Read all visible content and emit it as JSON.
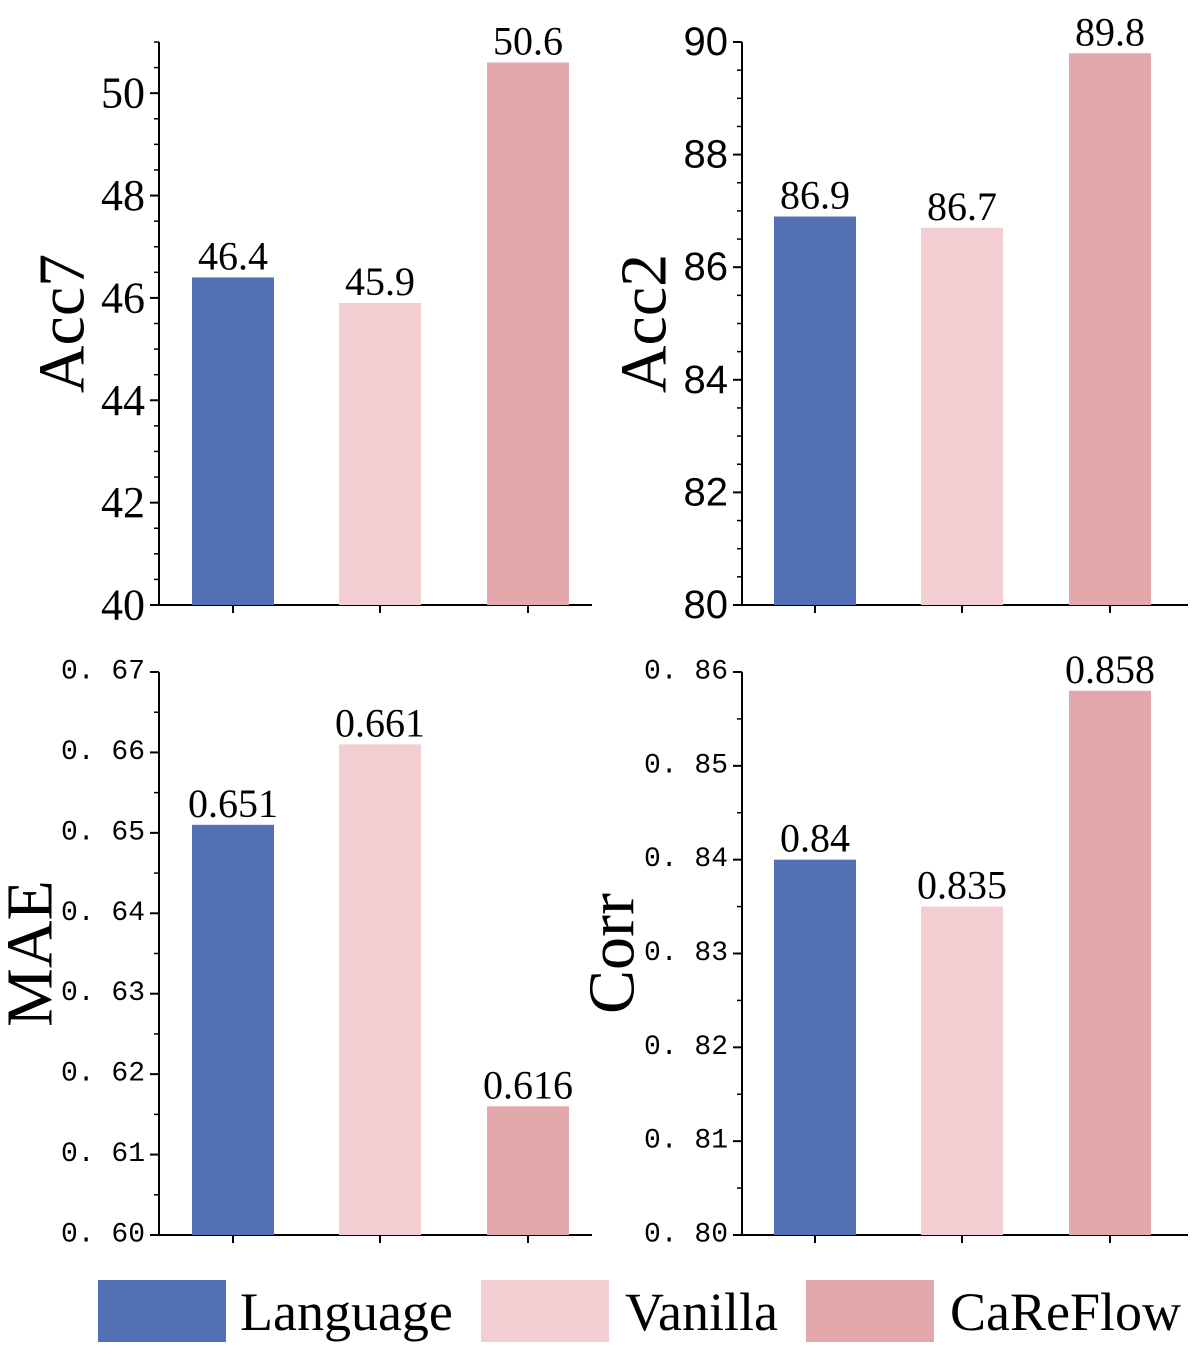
{
  "legend": [
    {
      "label": "Language",
      "color": "#5470b4"
    },
    {
      "label": "Vanilla",
      "color": "#f2cdd1"
    },
    {
      "label": "CaReFlow",
      "color": "#e3a8ab"
    }
  ],
  "chart_data": [
    {
      "type": "bar",
      "categories": [
        "Language",
        "Vanilla",
        "CaReFlow"
      ],
      "values": [
        46.4,
        45.9,
        50.6
      ],
      "value_labels": [
        "46.4",
        "45.9",
        "50.6"
      ],
      "ylabel": "Acc7",
      "ylim": [
        40,
        51
      ],
      "yticks": [
        40,
        42,
        44,
        46,
        48,
        50
      ],
      "ytick_labels": [
        "40",
        "42",
        "44",
        "46",
        "48",
        "50"
      ]
    },
    {
      "type": "bar",
      "categories": [
        "Language",
        "Vanilla",
        "CaReFlow"
      ],
      "values": [
        86.9,
        86.7,
        89.8
      ],
      "value_labels": [
        "86.9",
        "86.7",
        "89.8"
      ],
      "ylabel": "Acc2",
      "ylim": [
        80,
        90
      ],
      "yticks": [
        80,
        82,
        84,
        86,
        88,
        90
      ],
      "ytick_labels": [
        "80",
        "82",
        "84",
        "86",
        "88",
        "90"
      ]
    },
    {
      "type": "bar",
      "categories": [
        "Language",
        "Vanilla",
        "CaReFlow"
      ],
      "values": [
        0.651,
        0.661,
        0.616
      ],
      "value_labels": [
        "0.651",
        "0.661",
        "0.616"
      ],
      "ylabel": "MAE",
      "ylim": [
        0.6,
        0.67
      ],
      "yticks": [
        0.6,
        0.61,
        0.62,
        0.63,
        0.64,
        0.65,
        0.66,
        0.67
      ],
      "ytick_labels": [
        "0. 60",
        "0. 61",
        "0. 62",
        "0. 63",
        "0. 64",
        "0. 65",
        "0. 66",
        "0. 67"
      ]
    },
    {
      "type": "bar",
      "categories": [
        "Language",
        "Vanilla",
        "CaReFlow"
      ],
      "values": [
        0.84,
        0.835,
        0.858
      ],
      "value_labels": [
        "0.84",
        "0.835",
        "0.858"
      ],
      "ylabel": "Corr",
      "ylim": [
        0.8,
        0.86
      ],
      "yticks": [
        0.8,
        0.81,
        0.82,
        0.83,
        0.84,
        0.85,
        0.86
      ],
      "ytick_labels": [
        "0. 80",
        "0. 81",
        "0. 82",
        "0. 83",
        "0. 84",
        "0. 85",
        "0. 86"
      ]
    }
  ]
}
